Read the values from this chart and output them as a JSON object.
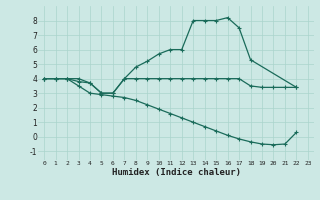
{
  "xlabel": "Humidex (Indice chaleur)",
  "background_color": "#cce8e4",
  "grid_color": "#aad4cc",
  "line_color": "#1a6b5a",
  "xlim": [
    -0.5,
    23.5
  ],
  "ylim": [
    -1.6,
    9.0
  ],
  "xticks": [
    0,
    1,
    2,
    3,
    4,
    5,
    6,
    7,
    8,
    9,
    10,
    11,
    12,
    13,
    14,
    15,
    16,
    17,
    18,
    19,
    20,
    21,
    22,
    23
  ],
  "yticks": [
    -1,
    0,
    1,
    2,
    3,
    4,
    5,
    6,
    7,
    8
  ],
  "line1_x": [
    0,
    1,
    2,
    3,
    4,
    5,
    6,
    7,
    8,
    9,
    10,
    11,
    12,
    13,
    14,
    15,
    16,
    17,
    18,
    22
  ],
  "line1_y": [
    4,
    4,
    4,
    3.8,
    3.7,
    3.0,
    3.0,
    4.0,
    4.8,
    5.2,
    5.7,
    6.0,
    6.0,
    8.0,
    8.0,
    8.0,
    8.2,
    7.5,
    5.3,
    3.4
  ],
  "line2_x": [
    0,
    1,
    2,
    3,
    4,
    5,
    6,
    7,
    8,
    9,
    10,
    11,
    12,
    13,
    14,
    15,
    16,
    17,
    18,
    19,
    20,
    21,
    22
  ],
  "line2_y": [
    4.0,
    4.0,
    4.0,
    4.0,
    3.7,
    3.0,
    3.0,
    4.0,
    4.0,
    4.0,
    4.0,
    4.0,
    4.0,
    4.0,
    4.0,
    4.0,
    4.0,
    4.0,
    3.5,
    3.4,
    3.4,
    3.4,
    3.4
  ],
  "line3_x": [
    0,
    1,
    2,
    3,
    4,
    5,
    6,
    7,
    8,
    9,
    10,
    11,
    12,
    13,
    14,
    15,
    16,
    17,
    18,
    19,
    20,
    21,
    22
  ],
  "line3_y": [
    4.0,
    4.0,
    4.0,
    3.5,
    3.0,
    2.9,
    2.8,
    2.7,
    2.5,
    2.2,
    1.9,
    1.6,
    1.3,
    1.0,
    0.7,
    0.4,
    0.1,
    -0.15,
    -0.35,
    -0.5,
    -0.55,
    -0.5,
    0.3
  ]
}
